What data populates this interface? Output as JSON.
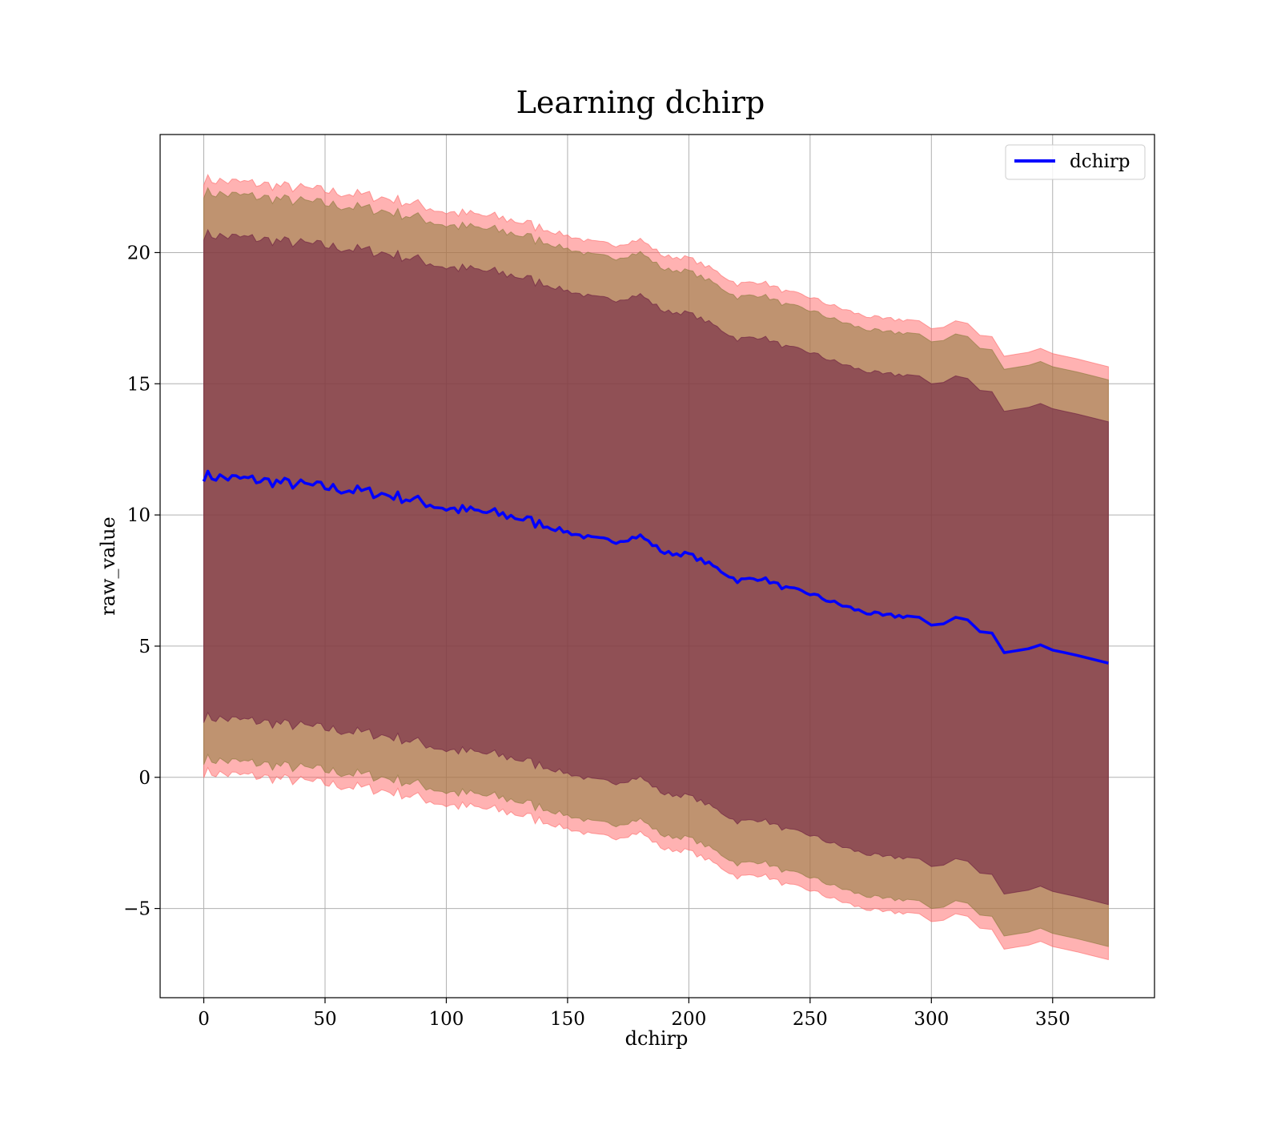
{
  "chart_data": {
    "type": "area",
    "title": "Learning dchirp",
    "xlabel": "dchirp",
    "ylabel": "raw_value",
    "xlim": [
      -18,
      392
    ],
    "ylim": [
      -8.4,
      24.5
    ],
    "xticks": [
      0,
      50,
      100,
      150,
      200,
      250,
      300,
      350
    ],
    "yticks": [
      -5,
      0,
      5,
      10,
      15,
      20
    ],
    "grid": true,
    "legend": {
      "placement": "top-right",
      "entries": [
        "dchirp"
      ]
    },
    "colors": {
      "mean_line": "#0000ff",
      "band_outer": "#ff6666",
      "band_middle": "#8b7a3a",
      "band_inner": "#6a1a40"
    },
    "x": [
      0,
      10,
      20,
      30,
      40,
      50,
      60,
      70,
      80,
      90,
      100,
      110,
      120,
      130,
      140,
      150,
      160,
      170,
      180,
      190,
      200,
      210,
      220,
      230,
      240,
      250,
      260,
      270,
      280,
      290,
      295,
      300,
      305,
      310,
      315,
      320,
      325,
      330,
      340,
      345,
      350,
      360,
      373
    ],
    "series": [
      {
        "name": "dchirp",
        "values": [
          11.5,
          11.4,
          11.35,
          11.25,
          11.15,
          11.05,
          10.95,
          10.85,
          10.7,
          10.5,
          10.25,
          10.15,
          10.05,
          9.9,
          9.6,
          9.35,
          9.1,
          9.0,
          9.2,
          8.55,
          8.5,
          8.05,
          7.5,
          7.6,
          7.2,
          7.0,
          6.65,
          6.35,
          6.15,
          6.15,
          6.1,
          5.8,
          5.85,
          6.1,
          6.0,
          5.55,
          5.5,
          4.75,
          4.9,
          5.05,
          4.85,
          4.65,
          4.35
        ]
      }
    ],
    "bands": [
      {
        "name": "outer",
        "half_width": 11.3
      },
      {
        "name": "middle",
        "half_width": 10.8
      },
      {
        "name": "inner",
        "half_width": 9.2
      }
    ]
  }
}
